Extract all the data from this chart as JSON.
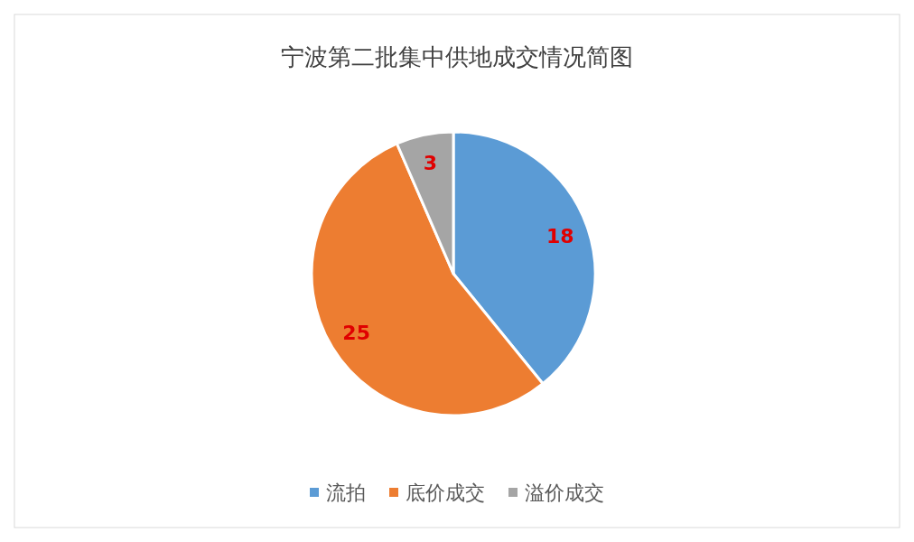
{
  "chart_data": {
    "type": "pie",
    "title": "宁波第二批集中供地成交情况简图",
    "categories": [
      "流拍",
      "底价成交",
      "溢价成交"
    ],
    "values": [
      18,
      25,
      3
    ],
    "colors": [
      "#5b9bd5",
      "#ed7d31",
      "#a5a5a5"
    ],
    "data_labels": true,
    "legend": "bottom"
  }
}
